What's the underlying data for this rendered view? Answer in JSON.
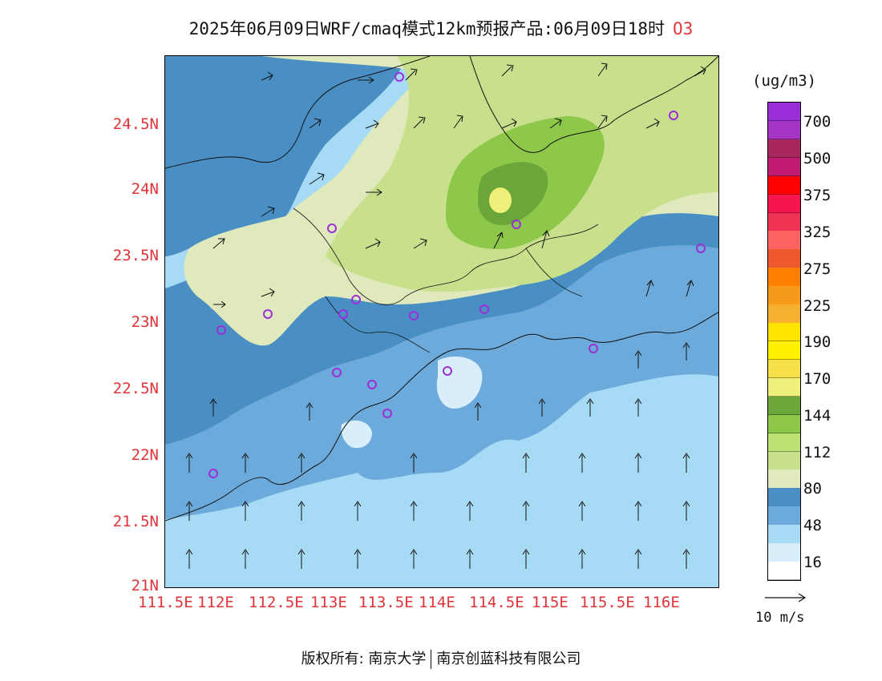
{
  "title": {
    "text": "2025年06月09日WRF/cmaq模式12km预报产品:06月09日18时",
    "species": "O3"
  },
  "lat_labels": [
    "24.5N",
    "24N",
    "23.5N",
    "23N",
    "22.5N",
    "22N",
    "21.5N",
    "21N"
  ],
  "lon_labels": [
    "111.5E",
    "112E",
    "112.5E",
    "113E",
    "113.5E",
    "114E",
    "114.5E",
    "115E",
    "115.5E",
    "116E"
  ],
  "colorbar": {
    "unit": "(ug/m3)",
    "labels": [
      "700",
      "500",
      "375",
      "325",
      "275",
      "225",
      "190",
      "170",
      "144",
      "112",
      "80",
      "48",
      "16"
    ],
    "colors": [
      "#9a2fd9",
      "#a434c4",
      "#a8285e",
      "#c01a72",
      "#ff0000",
      "#f5154f",
      "#ef3355",
      "#ff6464",
      "#ee5a2c",
      "#ff8000",
      "#f79a1c",
      "#f7b030",
      "#ffe400",
      "#fff200",
      "#f5e04a",
      "#eef07a",
      "#6ba63a",
      "#8dc84a",
      "#bde274",
      "#c8e08c",
      "#dfe9bc",
      "#4a8fc3",
      "#6caadb",
      "#a7dbf5",
      "#d8eefa",
      "#ffffff"
    ]
  },
  "vector_reference": {
    "label": "10 m/s"
  },
  "colors": {
    "ocean": "#a7dbf5",
    "near_coast": "#6caadb",
    "band_dark": "#4a8fc3",
    "pale_green": "#dfe9bc",
    "light_green": "#c8e08c",
    "green": "#8dc84a",
    "dark_green": "#6ba63a",
    "yellow": "#eef07a",
    "axis_label": "#e0343a",
    "station_marker": "#9a2fd9"
  },
  "footer": {
    "left": "版权所有: 南京大学",
    "right": "南京创蓝科技有限公司"
  }
}
